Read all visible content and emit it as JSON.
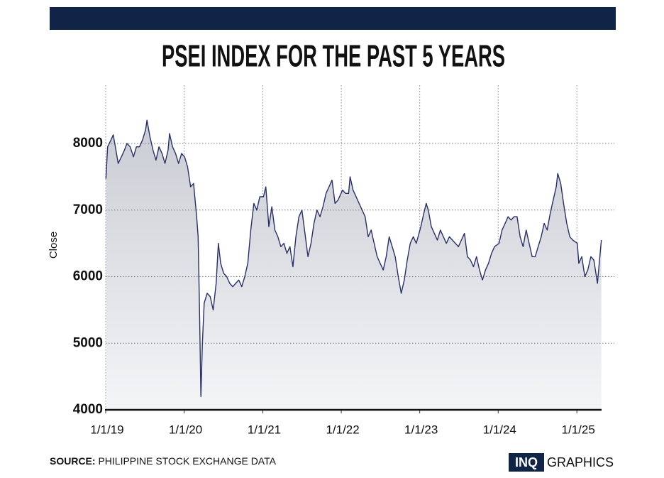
{
  "chart_data": {
    "type": "area",
    "title": "PSEI INDEX FOR THE PAST 5 YEARS",
    "y_label": "Close",
    "source_label": "SOURCE:",
    "source": "PHILIPPINE STOCK EXCHANGE DATA",
    "logo_box": "INQ",
    "logo_text": "GRAPHICS",
    "line_color": "#27306b",
    "xlim": [
      "2019-01-01",
      "2025-04-26"
    ],
    "xticks": [
      {
        "value": "2019-01-01",
        "label": "1/1/19"
      },
      {
        "value": "2020-01-01",
        "label": "1/1/20"
      },
      {
        "value": "2021-01-01",
        "label": "1/1/21"
      },
      {
        "value": "2022-01-01",
        "label": "1/1/22"
      },
      {
        "value": "2023-01-01",
        "label": "1/1/23"
      },
      {
        "value": "2024-01-01",
        "label": "1/1/24"
      },
      {
        "value": "2025-01-01",
        "label": "1/1/25"
      }
    ],
    "ylim": [
      4000,
      8875
    ],
    "yticks": [
      4000,
      5000,
      6000,
      7000,
      8000
    ],
    "grid": true,
    "x": [
      "2019-01-02",
      "2019-01-10",
      "2019-01-25",
      "2019-02-05",
      "2019-02-15",
      "2019-02-28",
      "2019-03-15",
      "2019-03-29",
      "2019-04-10",
      "2019-04-25",
      "2019-05-10",
      "2019-05-24",
      "2019-06-07",
      "2019-06-21",
      "2019-07-05",
      "2019-07-12",
      "2019-07-26",
      "2019-08-09",
      "2019-08-23",
      "2019-09-06",
      "2019-09-20",
      "2019-10-04",
      "2019-10-18",
      "2019-10-25",
      "2019-11-08",
      "2019-11-22",
      "2019-12-06",
      "2019-12-20",
      "2020-01-03",
      "2020-01-17",
      "2020-01-31",
      "2020-02-14",
      "2020-02-28",
      "2020-03-06",
      "2020-03-13",
      "2020-03-19",
      "2020-03-26",
      "2020-04-03",
      "2020-04-17",
      "2020-05-01",
      "2020-05-15",
      "2020-05-29",
      "2020-06-08",
      "2020-06-19",
      "2020-07-03",
      "2020-07-17",
      "2020-07-31",
      "2020-08-14",
      "2020-08-28",
      "2020-09-11",
      "2020-09-25",
      "2020-10-09",
      "2020-10-23",
      "2020-11-06",
      "2020-11-20",
      "2020-12-04",
      "2020-12-18",
      "2021-01-04",
      "2021-01-15",
      "2021-01-29",
      "2021-02-12",
      "2021-02-26",
      "2021-03-12",
      "2021-03-26",
      "2021-04-09",
      "2021-04-23",
      "2021-05-07",
      "2021-05-21",
      "2021-06-04",
      "2021-06-18",
      "2021-07-02",
      "2021-07-16",
      "2021-07-30",
      "2021-08-13",
      "2021-08-27",
      "2021-09-10",
      "2021-09-24",
      "2021-10-08",
      "2021-10-22",
      "2021-11-05",
      "2021-11-19",
      "2021-12-03",
      "2021-12-17",
      "2022-01-07",
      "2022-01-21",
      "2022-02-04",
      "2022-02-11",
      "2022-02-25",
      "2022-03-11",
      "2022-03-25",
      "2022-04-08",
      "2022-04-22",
      "2022-05-06",
      "2022-05-20",
      "2022-06-03",
      "2022-06-17",
      "2022-07-01",
      "2022-07-15",
      "2022-07-29",
      "2022-08-12",
      "2022-08-26",
      "2022-09-09",
      "2022-09-23",
      "2022-10-07",
      "2022-10-21",
      "2022-11-04",
      "2022-11-18",
      "2022-12-02",
      "2022-12-16",
      "2023-01-06",
      "2023-01-20",
      "2023-01-31",
      "2023-02-10",
      "2023-02-24",
      "2023-03-10",
      "2023-03-24",
      "2023-04-07",
      "2023-04-21",
      "2023-05-05",
      "2023-05-19",
      "2023-06-02",
      "2023-06-16",
      "2023-06-30",
      "2023-07-14",
      "2023-07-28",
      "2023-08-11",
      "2023-08-25",
      "2023-09-08",
      "2023-09-22",
      "2023-10-06",
      "2023-10-20",
      "2023-11-03",
      "2023-11-17",
      "2023-12-01",
      "2023-12-15",
      "2024-01-05",
      "2024-01-19",
      "2024-02-02",
      "2024-02-16",
      "2024-03-01",
      "2024-03-15",
      "2024-03-29",
      "2024-04-12",
      "2024-04-26",
      "2024-05-10",
      "2024-05-24",
      "2024-06-07",
      "2024-06-21",
      "2024-07-05",
      "2024-07-19",
      "2024-08-02",
      "2024-08-16",
      "2024-08-30",
      "2024-09-13",
      "2024-09-27",
      "2024-10-04",
      "2024-10-18",
      "2024-10-31",
      "2024-11-15",
      "2024-11-29",
      "2024-12-13",
      "2025-01-03",
      "2025-01-10",
      "2025-01-24",
      "2025-02-07",
      "2025-02-21",
      "2025-03-07",
      "2025-03-21",
      "2025-04-07",
      "2025-04-15",
      "2025-04-25"
    ],
    "values": [
      7470,
      7950,
      8050,
      8130,
      7950,
      7700,
      7800,
      7900,
      8000,
      7950,
      7800,
      7950,
      7950,
      8050,
      8200,
      8350,
      8100,
      7900,
      7750,
      7950,
      7850,
      7700,
      7900,
      8150,
      7950,
      7850,
      7700,
      7850,
      7800,
      7650,
      7350,
      7400,
      6900,
      6600,
      5400,
      4200,
      5000,
      5600,
      5750,
      5700,
      5500,
      5900,
      6500,
      6200,
      6050,
      6000,
      5900,
      5850,
      5900,
      5950,
      5850,
      6000,
      6200,
      6700,
      7100,
      7000,
      7200,
      7200,
      7350,
      6750,
      7050,
      6700,
      6600,
      6450,
      6500,
      6350,
      6450,
      6150,
      6600,
      6900,
      7000,
      6650,
      6300,
      6500,
      6800,
      7000,
      6900,
      7050,
      7250,
      7350,
      7450,
      7100,
      7150,
      7300,
      7250,
      7250,
      7500,
      7300,
      7200,
      7100,
      7000,
      6900,
      6600,
      6700,
      6500,
      6300,
      6200,
      6100,
      6300,
      6600,
      6450,
      6300,
      6000,
      5750,
      5950,
      6250,
      6500,
      6600,
      6500,
      6750,
      6950,
      7100,
      7000,
      6750,
      6650,
      6550,
      6700,
      6600,
      6500,
      6600,
      6550,
      6500,
      6450,
      6550,
      6650,
      6300,
      6250,
      6150,
      6300,
      6100,
      5950,
      6100,
      6200,
      6350,
      6450,
      6500,
      6700,
      6800,
      6900,
      6850,
      6900,
      6900,
      6600,
      6450,
      6700,
      6500,
      6300,
      6300,
      6450,
      6600,
      6800,
      6700,
      6950,
      7150,
      7350,
      7550,
      7400,
      7100,
      6800,
      6600,
      6550,
      6500,
      6200,
      6300,
      6000,
      6100,
      6300,
      6250,
      5900,
      6200,
      6550
    ]
  }
}
